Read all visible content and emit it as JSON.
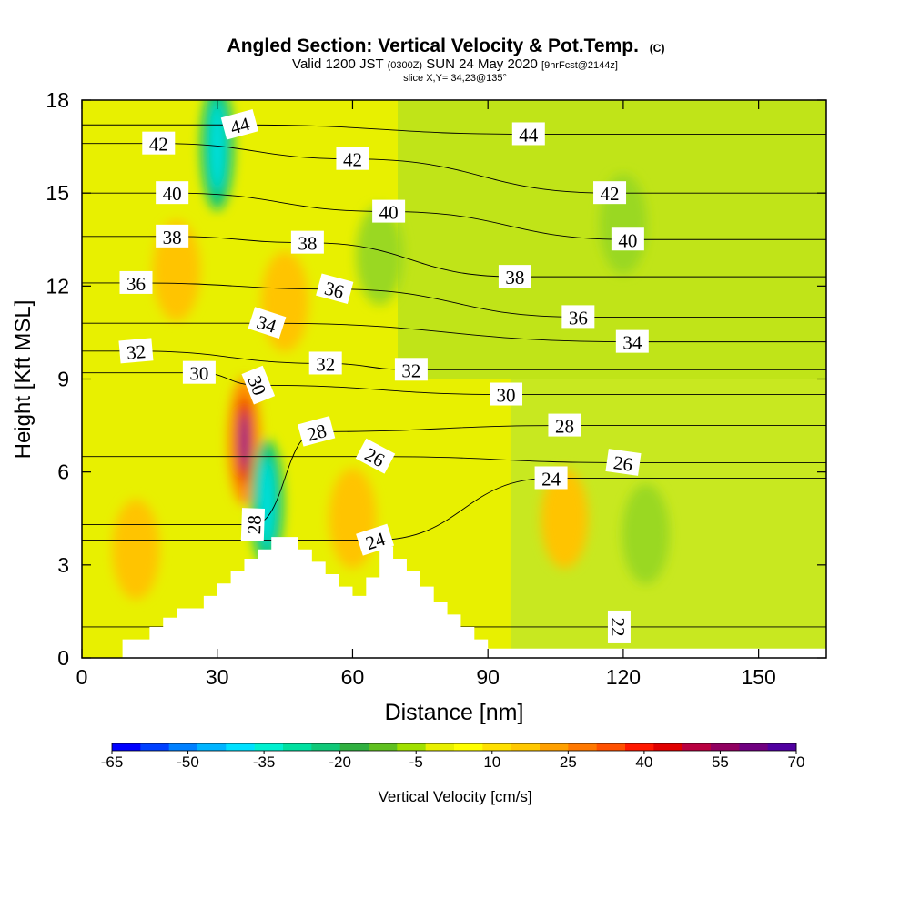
{
  "chart_data": {
    "type": "heatmap",
    "title": "Angled Section: Vertical Velocity & Pot.Temp.",
    "title_mark": "(C)",
    "subtitle_main": "Valid 1200 JST",
    "subtitle_utc": "(0300Z)",
    "subtitle_date": "SUN 24 May 2020",
    "subtitle_fcst": "[9hrFcst@2144z]",
    "slice_label": "slice X,Y= 34,23@135°",
    "xlabel": "Distance [nm]",
    "ylabel": "Height [Kft MSL]",
    "xlim": [
      0,
      165
    ],
    "ylim": [
      0,
      18
    ],
    "xticks": [
      0,
      30,
      60,
      90,
      120,
      150
    ],
    "yticks": [
      0,
      3,
      6,
      9,
      12,
      15,
      18
    ],
    "colorbar": {
      "label": "Vertical Velocity [cm/s]",
      "tick_labels": [
        "-65",
        "-50",
        "-35",
        "-20",
        "-5",
        "10",
        "25",
        "40",
        "55",
        "70"
      ],
      "colors": [
        "#0000ff",
        "#0040ff",
        "#0080ff",
        "#00b4ff",
        "#00e0ff",
        "#00f0d0",
        "#00e0a0",
        "#10c878",
        "#30b040",
        "#60c020",
        "#a0e000",
        "#e8f000",
        "#ffff00",
        "#ffe000",
        "#ffc800",
        "#ffa000",
        "#ff7800",
        "#ff5000",
        "#ff1800",
        "#e00000",
        "#b80040",
        "#900060",
        "#700080",
        "#5000a0"
      ]
    },
    "velocity_features": [
      {
        "type": "updraft",
        "x": 36,
        "y": 7.0,
        "peak": 65
      },
      {
        "type": "updraft",
        "x": 21,
        "y": 12.5,
        "peak": 18
      },
      {
        "type": "updraft",
        "x": 45,
        "y": 11.5,
        "peak": 15
      },
      {
        "type": "updraft",
        "x": 60,
        "y": 4.5,
        "peak": 18
      },
      {
        "type": "updraft",
        "x": 12,
        "y": 3.5,
        "peak": 18
      },
      {
        "type": "updraft",
        "x": 107,
        "y": 4.5,
        "peak": 18
      },
      {
        "type": "downdraft",
        "x": 41,
        "y": 5.0,
        "peak": -45
      },
      {
        "type": "downdraft",
        "x": 30,
        "y": 16.5,
        "peak": -38
      },
      {
        "type": "downdraft",
        "x": 66,
        "y": 13.0,
        "peak": -8
      },
      {
        "type": "downdraft",
        "x": 120,
        "y": 14.0,
        "peak": -5
      },
      {
        "type": "downdraft",
        "x": 125,
        "y": 4.0,
        "peak": -12
      }
    ],
    "isentropes": [
      {
        "value": 22,
        "label_x": 119,
        "label_y": 1.0,
        "label_rot": 90
      },
      {
        "value": 24,
        "label_x": 65,
        "label_y": 3.8,
        "label_rot": -18
      },
      {
        "value": 24,
        "label_x": 104,
        "label_y": 5.8,
        "label_rot": 0
      },
      {
        "value": 26,
        "label_x": 65,
        "label_y": 6.5,
        "label_rot": 28
      },
      {
        "value": 26,
        "label_x": 120,
        "label_y": 6.3,
        "label_rot": 8
      },
      {
        "value": 28,
        "label_x": 38,
        "label_y": 4.3,
        "label_rot": -88
      },
      {
        "value": 28,
        "label_x": 52,
        "label_y": 7.3,
        "label_rot": -15
      },
      {
        "value": 28,
        "label_x": 107,
        "label_y": 7.5,
        "label_rot": 0
      },
      {
        "value": 30,
        "label_x": 26,
        "label_y": 9.2,
        "label_rot": 0
      },
      {
        "value": 30,
        "label_x": 39,
        "label_y": 8.8,
        "label_rot": 68
      },
      {
        "value": 30,
        "label_x": 94,
        "label_y": 8.5,
        "label_rot": 0
      },
      {
        "value": 32,
        "label_x": 12,
        "label_y": 9.9,
        "label_rot": -5
      },
      {
        "value": 32,
        "label_x": 54,
        "label_y": 9.5,
        "label_rot": 0
      },
      {
        "value": 32,
        "label_x": 73,
        "label_y": 9.3,
        "label_rot": 0
      },
      {
        "value": 34,
        "label_x": 41,
        "label_y": 10.8,
        "label_rot": 18
      },
      {
        "value": 34,
        "label_x": 122,
        "label_y": 10.2,
        "label_rot": 0
      },
      {
        "value": 36,
        "label_x": 12,
        "label_y": 12.1,
        "label_rot": 0
      },
      {
        "value": 36,
        "label_x": 56,
        "label_y": 11.9,
        "label_rot": 15
      },
      {
        "value": 36,
        "label_x": 110,
        "label_y": 11.0,
        "label_rot": 0
      },
      {
        "value": 38,
        "label_x": 20,
        "label_y": 13.6,
        "label_rot": 0
      },
      {
        "value": 38,
        "label_x": 50,
        "label_y": 13.4,
        "label_rot": 0
      },
      {
        "value": 38,
        "label_x": 96,
        "label_y": 12.3,
        "label_rot": 0
      },
      {
        "value": 40,
        "label_x": 20,
        "label_y": 15.0,
        "label_rot": 0
      },
      {
        "value": 40,
        "label_x": 68,
        "label_y": 14.4,
        "label_rot": 0
      },
      {
        "value": 40,
        "label_x": 121,
        "label_y": 13.5,
        "label_rot": 0
      },
      {
        "value": 42,
        "label_x": 17,
        "label_y": 16.6,
        "label_rot": 0
      },
      {
        "value": 42,
        "label_x": 60,
        "label_y": 16.1,
        "label_rot": 0
      },
      {
        "value": 42,
        "label_x": 117,
        "label_y": 15.0,
        "label_rot": 0
      },
      {
        "value": 44,
        "label_x": 35,
        "label_y": 17.2,
        "label_rot": -15
      },
      {
        "value": 44,
        "label_x": 99,
        "label_y": 16.9,
        "label_rot": 0
      }
    ],
    "terrain": [
      [
        0,
        0
      ],
      [
        9,
        0
      ],
      [
        9,
        0.6
      ],
      [
        15,
        0.6
      ],
      [
        15,
        1.0
      ],
      [
        18,
        1.0
      ],
      [
        18,
        1.3
      ],
      [
        21,
        1.3
      ],
      [
        21,
        1.6
      ],
      [
        27,
        1.6
      ],
      [
        27,
        2.0
      ],
      [
        30,
        2.0
      ],
      [
        30,
        2.4
      ],
      [
        33,
        2.4
      ],
      [
        33,
        2.8
      ],
      [
        36,
        2.8
      ],
      [
        36,
        3.2
      ],
      [
        39,
        3.2
      ],
      [
        39,
        3.5
      ],
      [
        42,
        3.5
      ],
      [
        42,
        3.9
      ],
      [
        48,
        3.9
      ],
      [
        48,
        3.5
      ],
      [
        51,
        3.5
      ],
      [
        51,
        3.1
      ],
      [
        54,
        3.1
      ],
      [
        54,
        2.7
      ],
      [
        57,
        2.7
      ],
      [
        57,
        2.3
      ],
      [
        60,
        2.3
      ],
      [
        60,
        2.0
      ],
      [
        63,
        2.0
      ],
      [
        63,
        2.6
      ],
      [
        66,
        2.6
      ],
      [
        66,
        3.6
      ],
      [
        69,
        3.6
      ],
      [
        69,
        3.2
      ],
      [
        72,
        3.2
      ],
      [
        72,
        2.8
      ],
      [
        75,
        2.8
      ],
      [
        75,
        2.3
      ],
      [
        78,
        2.3
      ],
      [
        78,
        1.8
      ],
      [
        81,
        1.8
      ],
      [
        81,
        1.4
      ],
      [
        84,
        1.4
      ],
      [
        84,
        1.0
      ],
      [
        87,
        1.0
      ],
      [
        87,
        0.6
      ],
      [
        90,
        0.6
      ],
      [
        90,
        0.3
      ],
      [
        165,
        0.3
      ],
      [
        165,
        0
      ],
      [
        0,
        0
      ]
    ]
  }
}
